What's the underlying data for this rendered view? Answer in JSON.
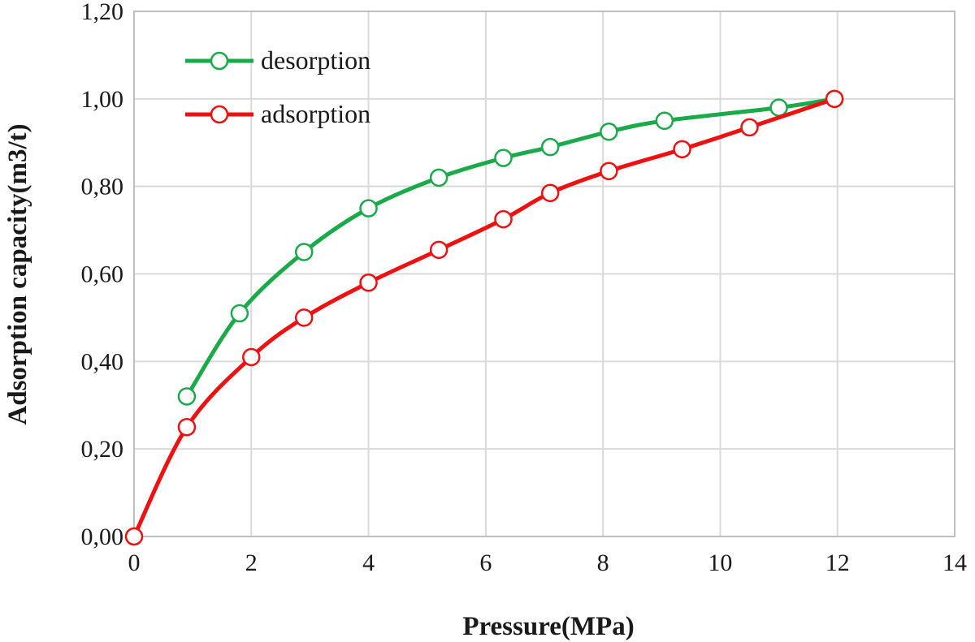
{
  "chart_data": {
    "type": "line",
    "title": "",
    "xlabel": "Pressure(MPa)",
    "ylabel": "Adsorption capacity(m3/t)",
    "xlim": [
      0,
      14
    ],
    "ylim": [
      0,
      1.2
    ],
    "x_ticks": [
      "0",
      "2",
      "4",
      "6",
      "8",
      "10",
      "12",
      "14"
    ],
    "y_ticks": [
      "0,00",
      "0,20",
      "0,40",
      "0,60",
      "0,80",
      "1,00",
      "1,20"
    ],
    "grid": true,
    "legend_position": "top-left",
    "series": [
      {
        "name": "desorption",
        "color": "#1aaa4a",
        "marker": "open-circle",
        "smooth": true,
        "x": [
          0.9,
          1.8,
          2.9,
          4.0,
          5.2,
          6.3,
          7.1,
          8.1,
          9.05,
          11.0,
          11.95
        ],
        "y": [
          0.32,
          0.51,
          0.65,
          0.75,
          0.82,
          0.865,
          0.89,
          0.925,
          0.95,
          0.98,
          1.0
        ]
      },
      {
        "name": "adsorption",
        "color": "#ee1111",
        "marker": "open-circle",
        "smooth": true,
        "x": [
          0.0,
          0.9,
          2.0,
          2.9,
          4.0,
          5.2,
          6.3,
          7.1,
          8.1,
          9.35,
          10.5,
          11.95
        ],
        "y": [
          0.0,
          0.25,
          0.41,
          0.5,
          0.58,
          0.655,
          0.725,
          0.785,
          0.835,
          0.885,
          0.935,
          1.0
        ]
      }
    ]
  }
}
